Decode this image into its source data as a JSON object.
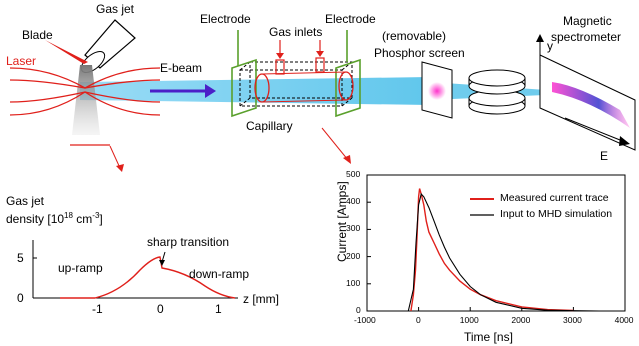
{
  "labels": {
    "blade": "Blade",
    "gas_jet": "Gas jet",
    "laser": "Laser",
    "ebeam": "E-beam",
    "electrode_left": "Electrode",
    "electrode_right": "Electrode",
    "gas_inlets": "Gas inlets",
    "capillary": "Capillary",
    "phosphor_line1": "(removable)",
    "phosphor_line2": "Phosphor screen",
    "spectrometer_line1": "Magnetic",
    "spectrometer_line2": "spectrometer",
    "axis_y": "y",
    "axis_e": "E"
  },
  "density_plot": {
    "title_line1": "Gas jet",
    "title_line2_prefix": "density [10",
    "title_exp1": "18",
    "title_mid": " cm",
    "title_exp2": "-3",
    "title_suffix": "]",
    "annotation_sharp": "sharp transition",
    "annotation_up": "up-ramp",
    "annotation_down": "down-ramp",
    "xlabel": "z [mm]",
    "y_ticks": [
      "5",
      "0"
    ],
    "x_ticks": [
      "-1",
      "0",
      "1"
    ]
  },
  "chart_data": {
    "type": "line",
    "xlabel": "Time [ns]",
    "ylabel": "Current [Amps]",
    "xlim": [
      -1000,
      4000
    ],
    "ylim": [
      0,
      500
    ],
    "x_ticks": [
      "-1000",
      "0",
      "1000",
      "2000",
      "3000",
      "4000"
    ],
    "y_ticks": [
      "0",
      "100",
      "200",
      "300",
      "400",
      "500"
    ],
    "legend_position": "top-right",
    "series": [
      {
        "name": "Measured current trace",
        "color": "#e0201b",
        "x": [
          -150,
          -100,
          -60,
          -30,
          0,
          20,
          50,
          100,
          150,
          200,
          300,
          400,
          500,
          600,
          800,
          1000,
          1200,
          1500,
          2000,
          2500,
          3000
        ],
        "y": [
          0,
          60,
          150,
          280,
          420,
          450,
          430,
          390,
          330,
          290,
          250,
          210,
          175,
          150,
          110,
          80,
          60,
          38,
          15,
          5,
          2
        ]
      },
      {
        "name": "Input to MHD simulation",
        "color": "#000000",
        "x": [
          -200,
          -100,
          -50,
          0,
          50,
          100,
          200,
          300,
          400,
          500,
          600,
          800,
          1000,
          1200,
          1500,
          2000,
          2500,
          3000,
          3500
        ],
        "y": [
          0,
          80,
          250,
          390,
          430,
          420,
          380,
          330,
          280,
          235,
          195,
          135,
          90,
          60,
          32,
          10,
          3,
          1,
          0
        ]
      }
    ]
  }
}
